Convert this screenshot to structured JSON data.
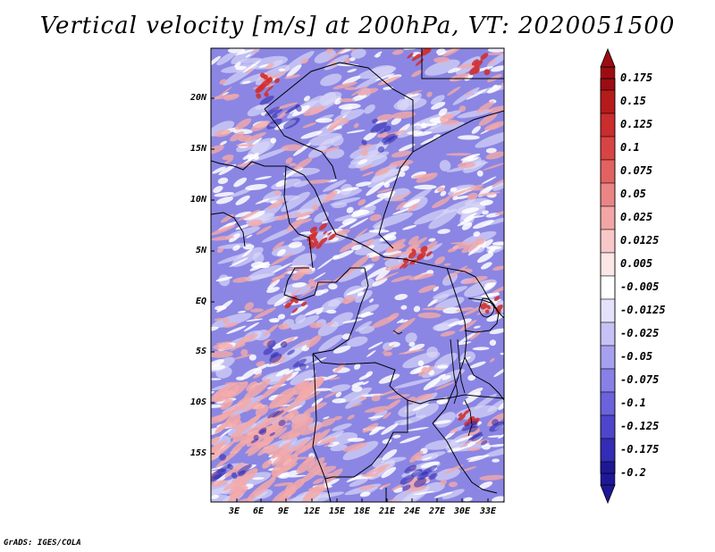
{
  "title": "Vertical velocity [m/s] at 200hPa, VT: 2020051500",
  "footer": "GrADS: IGES/COLA",
  "lat_labels": [
    "20N",
    "15N",
    "10N",
    "5N",
    "EQ",
    "5S",
    "10S",
    "15S"
  ],
  "lon_labels": [
    "3E",
    "6E",
    "9E",
    "12E",
    "15E",
    "18E",
    "21E",
    "24E",
    "27E",
    "30E",
    "33E"
  ],
  "colorbar": {
    "labels": [
      "0.175",
      "0.15",
      "0.125",
      "0.1",
      "0.075",
      "0.05",
      "0.025",
      "0.0125",
      "0.005",
      "-0.005",
      "-0.0125",
      "-0.025",
      "-0.05",
      "-0.075",
      "-0.1",
      "-0.125",
      "-0.175",
      "-0.2"
    ],
    "colors": [
      "#9b0d12",
      "#b51b1b",
      "#c92d2d",
      "#d84444",
      "#e26262",
      "#eb8585",
      "#f2a6a6",
      "#f8c8c8",
      "#fce6e6",
      "#ffffff",
      "#e4e2fb",
      "#c6c2f6",
      "#a6a0ef",
      "#8880e6",
      "#6b62dc",
      "#4e45cc",
      "#332cb4",
      "#1e1896"
    ]
  },
  "map_colors": {
    "background": "#8b86e3",
    "pale": "#d9d7f8",
    "white": "#ffffff",
    "pink": "#f3a9a9",
    "red": "#cf3030",
    "deep_blue": "#2e28b0"
  }
}
